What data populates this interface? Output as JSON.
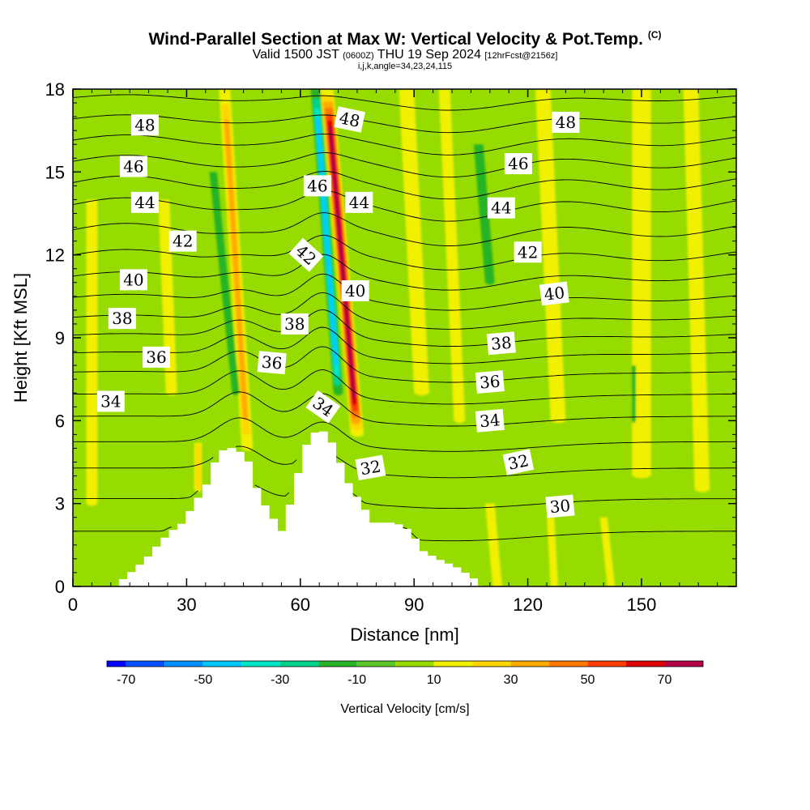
{
  "header": {
    "title": "Wind-Parallel Section at Max W: Vertical Velocity & Pot.Temp.",
    "title_mark": "(C)",
    "valid_prefix": "Valid 1500 JST",
    "valid_utc": "(0600Z)",
    "valid_date": "THU 19 Sep 2024",
    "forecast": "[12hrFcst@2156z]",
    "indices": "i,j,k,angle=34,23,24,115"
  },
  "chart_data": {
    "type": "heatmap",
    "title": "Wind-Parallel Section at Max W: Vertical Velocity & Pot.Temp.",
    "xlabel": "Distance [nm]",
    "ylabel": "Height [Kft MSL]",
    "xlim": [
      0,
      175
    ],
    "ylim": [
      0,
      18
    ],
    "x_ticks": [
      "0",
      "30",
      "60",
      "90",
      "120",
      "150"
    ],
    "x_tick_values": [
      0,
      30,
      60,
      90,
      120,
      150
    ],
    "y_ticks": [
      "0",
      "3",
      "6",
      "9",
      "12",
      "15",
      "18"
    ],
    "y_tick_values": [
      0,
      3,
      6,
      9,
      12,
      15,
      18
    ],
    "fill_variable": "Vertical Velocity [cm/s]",
    "contour_variable": "Potential Temperature",
    "colorbar": {
      "label": "Vertical Velocity [cm/s]",
      "tick_labels": [
        "-70",
        "-50",
        "-30",
        "-10",
        "10",
        "30",
        "50",
        "70"
      ],
      "tick_values": [
        -70,
        -50,
        -30,
        -10,
        10,
        30,
        50,
        70
      ],
      "min": -75,
      "max": 80,
      "bins": [
        {
          "low": -80,
          "high": -70,
          "color": "#0000ff"
        },
        {
          "low": -70,
          "high": -60,
          "color": "#0050ff"
        },
        {
          "low": -60,
          "high": -50,
          "color": "#0090ff"
        },
        {
          "low": -50,
          "high": -40,
          "color": "#00c8ff"
        },
        {
          "low": -40,
          "high": -30,
          "color": "#00e6c8"
        },
        {
          "low": -30,
          "high": -20,
          "color": "#00d28c"
        },
        {
          "low": -20,
          "high": -10,
          "color": "#28b428"
        },
        {
          "low": -10,
          "high": 0,
          "color": "#5ac828"
        },
        {
          "low": 0,
          "high": 10,
          "color": "#96dc00"
        },
        {
          "low": 10,
          "high": 20,
          "color": "#f0f000"
        },
        {
          "low": 20,
          "high": 30,
          "color": "#ffd700"
        },
        {
          "low": 30,
          "high": 40,
          "color": "#ffaa00"
        },
        {
          "low": 40,
          "high": 50,
          "color": "#ff7800"
        },
        {
          "low": 50,
          "high": 60,
          "color": "#ff3c00"
        },
        {
          "low": 60,
          "high": 70,
          "color": "#dc0000"
        },
        {
          "low": 70,
          "high": 80,
          "color": "#b40046"
        },
        {
          "low": 80,
          "high": 90,
          "color": "#7d0082"
        }
      ]
    },
    "terrain_kft": [
      {
        "x": 0,
        "h": 0
      },
      {
        "x": 10,
        "h": 0
      },
      {
        "x": 13,
        "h": 0.35
      },
      {
        "x": 16,
        "h": 0.7
      },
      {
        "x": 19,
        "h": 1.1
      },
      {
        "x": 22,
        "h": 1.6
      },
      {
        "x": 25,
        "h": 2.0
      },
      {
        "x": 28,
        "h": 2.3
      },
      {
        "x": 31,
        "h": 3.0
      },
      {
        "x": 34,
        "h": 3.6
      },
      {
        "x": 36,
        "h": 4.4
      },
      {
        "x": 39,
        "h": 5.0
      },
      {
        "x": 42,
        "h": 5.0
      },
      {
        "x": 45,
        "h": 4.6
      },
      {
        "x": 48,
        "h": 3.3
      },
      {
        "x": 51,
        "h": 2.6
      },
      {
        "x": 54,
        "h": 2.0
      },
      {
        "x": 57,
        "h": 3.3
      },
      {
        "x": 60,
        "h": 5.0
      },
      {
        "x": 63,
        "h": 5.6
      },
      {
        "x": 66,
        "h": 5.6
      },
      {
        "x": 69,
        "h": 4.6
      },
      {
        "x": 72,
        "h": 3.6
      },
      {
        "x": 75,
        "h": 3.0
      },
      {
        "x": 78,
        "h": 2.3
      },
      {
        "x": 84,
        "h": 2.3
      },
      {
        "x": 88,
        "h": 2.0
      },
      {
        "x": 91,
        "h": 1.3
      },
      {
        "x": 95,
        "h": 1.0
      },
      {
        "x": 100,
        "h": 0.7
      },
      {
        "x": 104,
        "h": 0.35
      },
      {
        "x": 107,
        "h": 0
      },
      {
        "x": 175,
        "h": 0
      }
    ],
    "w_features": [
      {
        "x0": 67,
        "x1": 75,
        "y0": 18,
        "y1": 5.5,
        "w": 3.5,
        "v": 75
      },
      {
        "x0": 64,
        "x1": 70,
        "y0": 18,
        "y1": 7,
        "w": 2.5,
        "v": -50
      },
      {
        "x0": 40,
        "x1": 46,
        "y0": 18,
        "y1": 5,
        "w": 3,
        "v": 35
      },
      {
        "x0": 37,
        "x1": 43,
        "y0": 15,
        "y1": 7,
        "w": 2,
        "v": -15
      },
      {
        "x0": 88,
        "x1": 92,
        "y0": 18,
        "y1": 7,
        "w": 4,
        "v": 20
      },
      {
        "x0": 98,
        "x1": 102,
        "y0": 18,
        "y1": 6,
        "w": 3,
        "v": 15
      },
      {
        "x0": 107,
        "x1": 110,
        "y0": 16,
        "y1": 11,
        "w": 2.5,
        "v": -15
      },
      {
        "x0": 24,
        "x1": 26,
        "y0": 14,
        "y1": 7,
        "w": 3,
        "v": 12
      },
      {
        "x0": 5,
        "x1": 5,
        "y0": 14,
        "y1": 3,
        "w": 3,
        "v": 14
      },
      {
        "x0": 124,
        "x1": 128,
        "y0": 18,
        "y1": 6,
        "w": 4,
        "v": 12
      },
      {
        "x0": 150,
        "x1": 150,
        "y0": 18,
        "y1": 4,
        "w": 5,
        "v": 13
      },
      {
        "x0": 163,
        "x1": 166,
        "y0": 18,
        "y1": 3.5,
        "w": 4,
        "v": 15
      },
      {
        "x0": 110,
        "x1": 112,
        "y0": 3,
        "y1": 0,
        "w": 2.5,
        "v": 15
      },
      {
        "x0": 126,
        "x1": 127,
        "y0": 2.5,
        "y1": 0,
        "w": 2,
        "v": 14
      },
      {
        "x0": 140,
        "x1": 142,
        "y0": 2.5,
        "y1": 0,
        "w": 2,
        "v": 12
      },
      {
        "x0": 148,
        "x1": 148,
        "y0": 8,
        "y1": 6,
        "w": 1,
        "v": -12
      },
      {
        "x0": 33,
        "x1": 33,
        "y0": 5.2,
        "y1": 3.5,
        "w": 2,
        "v": 30
      }
    ],
    "theta_levels": [
      29,
      30,
      31,
      32,
      33,
      34,
      35,
      36,
      37,
      38,
      39,
      40,
      41,
      42,
      43,
      44,
      45,
      46,
      47,
      48,
      49
    ],
    "theta_profile": [
      {
        "z": 0,
        "theta": 29.0
      },
      {
        "z": 2,
        "theta": 30.0
      },
      {
        "z": 4,
        "theta": 31.7
      },
      {
        "z": 6,
        "theta": 33.8
      },
      {
        "z": 8,
        "theta": 36.3
      },
      {
        "z": 10,
        "theta": 39.4
      },
      {
        "z": 12,
        "theta": 42.0
      },
      {
        "z": 14,
        "theta": 44.2
      },
      {
        "z": 16,
        "theta": 46.8
      },
      {
        "z": 18,
        "theta": 49.4
      }
    ],
    "contour_labels": [
      {
        "text": "48",
        "x": 19,
        "y": 16.7,
        "rot": 0
      },
      {
        "text": "46",
        "x": 16,
        "y": 15.2,
        "rot": 0
      },
      {
        "text": "44",
        "x": 19,
        "y": 13.9,
        "rot": 0
      },
      {
        "text": "42",
        "x": 29,
        "y": 12.5,
        "rot": 0
      },
      {
        "text": "40",
        "x": 16,
        "y": 11.1,
        "rot": 0
      },
      {
        "text": "38",
        "x": 13,
        "y": 9.7,
        "rot": 0
      },
      {
        "text": "36",
        "x": 22,
        "y": 8.3,
        "rot": 0
      },
      {
        "text": "34",
        "x": 10,
        "y": 6.7,
        "rot": 0
      },
      {
        "text": "48",
        "x": 73,
        "y": 16.9,
        "rot": 12
      },
      {
        "text": "46",
        "x": 64.5,
        "y": 14.5,
        "rot": 0
      },
      {
        "text": "44",
        "x": 75.5,
        "y": 13.9,
        "rot": 0
      },
      {
        "text": "42",
        "x": 61.5,
        "y": 12.0,
        "rot": 42
      },
      {
        "text": "40",
        "x": 74.5,
        "y": 10.7,
        "rot": 0
      },
      {
        "text": "38",
        "x": 58.5,
        "y": 9.5,
        "rot": 0
      },
      {
        "text": "36",
        "x": 52.5,
        "y": 8.1,
        "rot": 5
      },
      {
        "text": "34",
        "x": 66,
        "y": 6.5,
        "rot": 35
      },
      {
        "text": "32",
        "x": 78.5,
        "y": 4.3,
        "rot": -10
      },
      {
        "text": "48",
        "x": 130,
        "y": 16.8,
        "rot": 0
      },
      {
        "text": "46",
        "x": 117.5,
        "y": 15.3,
        "rot": 0
      },
      {
        "text": "44",
        "x": 113,
        "y": 13.7,
        "rot": 0
      },
      {
        "text": "42",
        "x": 120,
        "y": 12.1,
        "rot": 0
      },
      {
        "text": "40",
        "x": 127,
        "y": 10.6,
        "rot": -7
      },
      {
        "text": "38",
        "x": 113,
        "y": 8.8,
        "rot": -5
      },
      {
        "text": "36",
        "x": 110,
        "y": 7.4,
        "rot": -5
      },
      {
        "text": "34",
        "x": 110,
        "y": 6.0,
        "rot": -5
      },
      {
        "text": "32",
        "x": 117.5,
        "y": 4.5,
        "rot": -12
      },
      {
        "text": "30",
        "x": 128.5,
        "y": 2.9,
        "rot": -5
      }
    ]
  }
}
